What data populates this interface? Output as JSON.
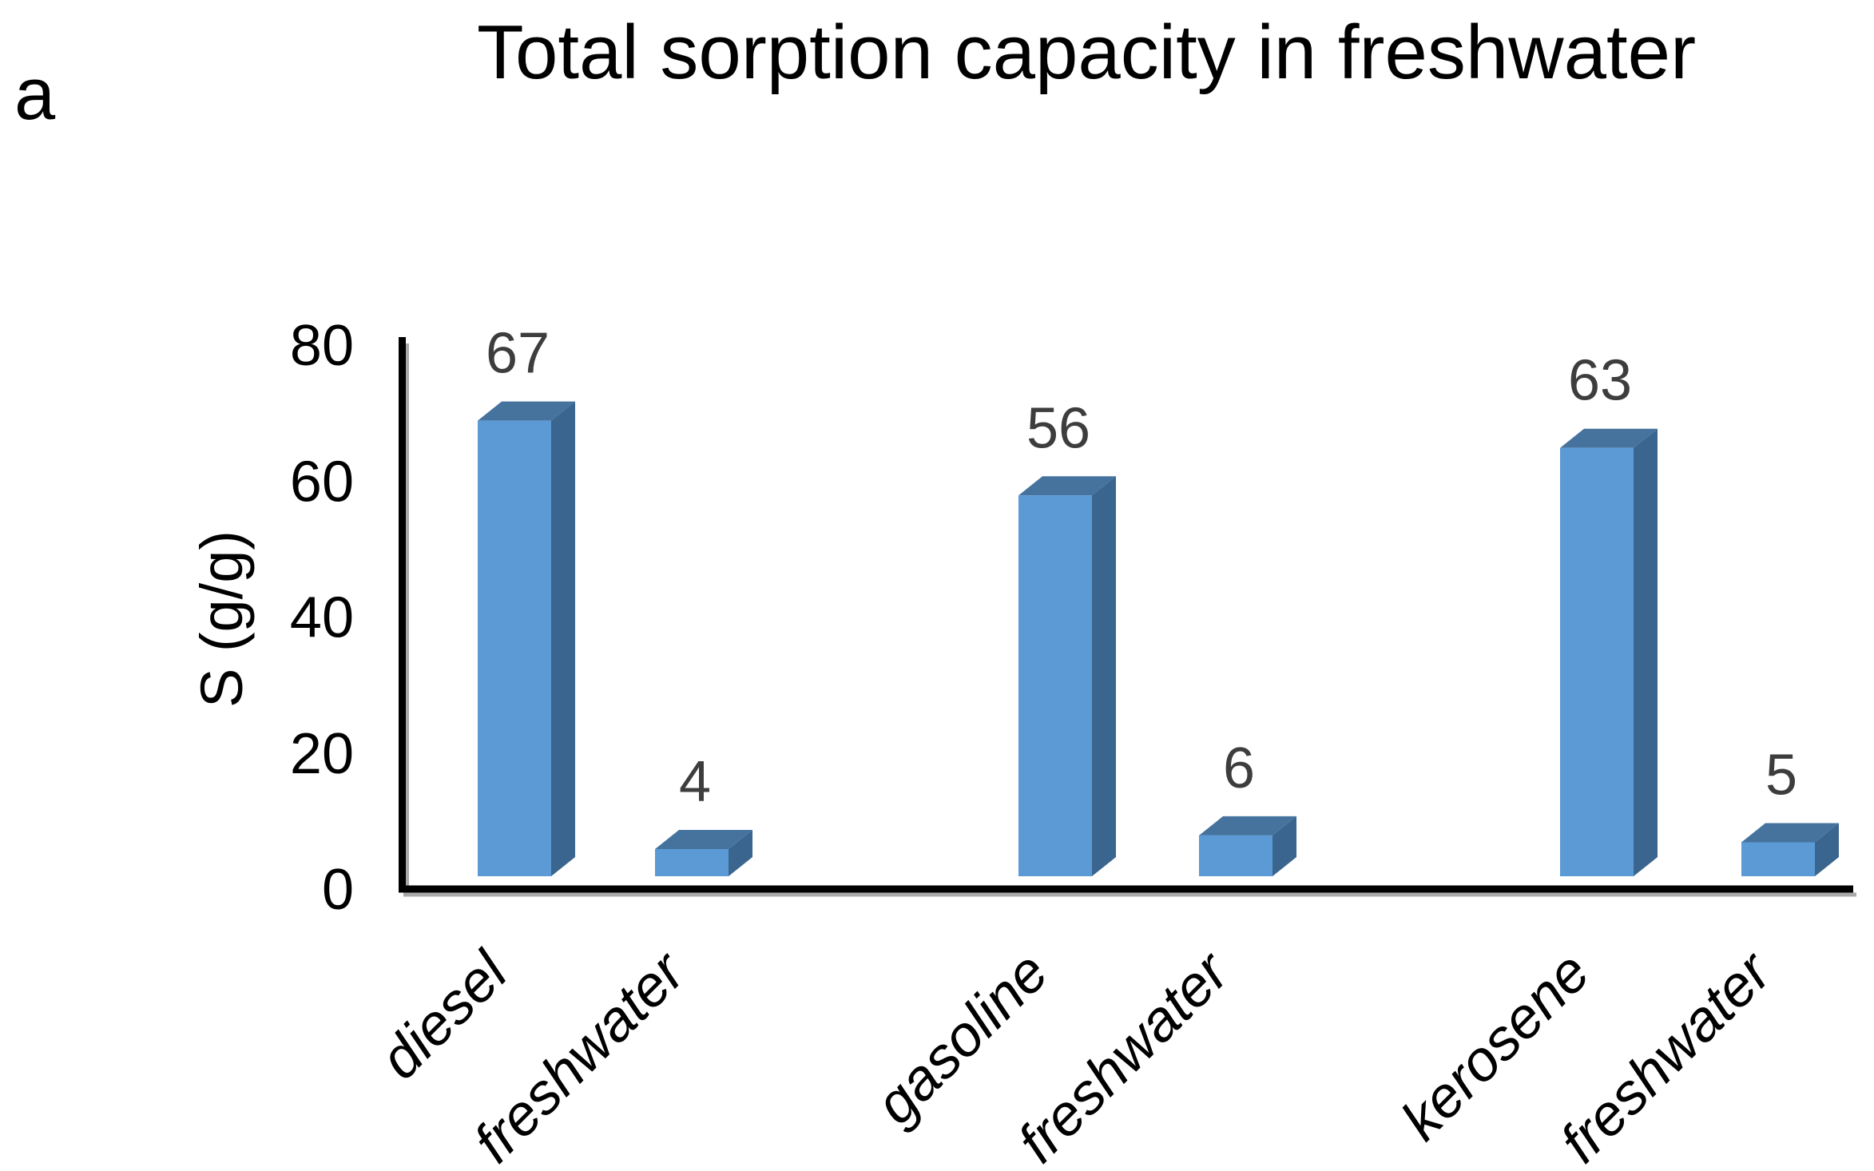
{
  "panel_label": "a",
  "chart_data": {
    "type": "bar",
    "title": "Total sorption capacity in freshwater",
    "ylabel": "S (g/g)",
    "xlabel": "",
    "categories": [
      "diesel",
      "freshwater",
      "gasoline",
      "freshwater",
      "kerosene",
      "freshwater"
    ],
    "values": [
      67,
      4,
      56,
      6,
      63,
      5
    ],
    "data_labels": [
      "67",
      "4",
      "56",
      "6",
      "63",
      "5"
    ],
    "yticks": [
      0,
      20,
      40,
      60,
      80
    ],
    "ylim": [
      0,
      80
    ],
    "grid": false,
    "legend": null,
    "style": "3d-prism-bars",
    "colors": {
      "bar_front": "#5B9AD5",
      "bar_top": "#45739E",
      "bar_side": "#3A658E",
      "value_label": "#3d3d3d",
      "axis": "#000000",
      "axis_shadow": "#a9a9a9",
      "text": "#000000"
    }
  }
}
